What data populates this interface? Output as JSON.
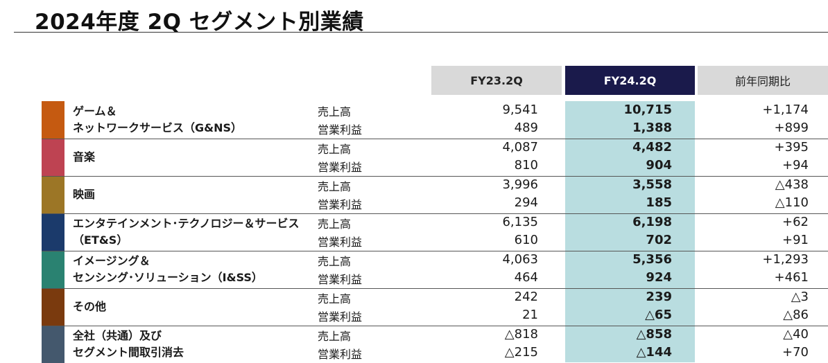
{
  "page_title": "2024年度 2Q セグメント別業績",
  "headers": {
    "fy23": "FY23.2Q",
    "fy24": "FY24.2Q",
    "yoy": "前年同期比"
  },
  "segments": [
    {
      "name": "ゲーム＆\nネットワークサービス（G&NS）",
      "color": "#c55a11",
      "rows": [
        {
          "metric": "売上高",
          "fy23": "9,541",
          "fy24": "10,715",
          "yoy": "+1,174"
        },
        {
          "metric": "営業利益",
          "fy23": "489",
          "fy24": "1,388",
          "yoy": "+899"
        }
      ]
    },
    {
      "name": "音楽",
      "color": "#be4352",
      "rows": [
        {
          "metric": "売上高",
          "fy23": "4,087",
          "fy24": "4,482",
          "yoy": "+395"
        },
        {
          "metric": "営業利益",
          "fy23": "810",
          "fy24": "904",
          "yoy": "+94"
        }
      ]
    },
    {
      "name": "映画",
      "color": "#9c7626",
      "rows": [
        {
          "metric": "売上高",
          "fy23": "3,996",
          "fy24": "3,558",
          "yoy": "△438"
        },
        {
          "metric": "営業利益",
          "fy23": "294",
          "fy24": "185",
          "yoy": "△110"
        }
      ]
    },
    {
      "name": "エンタテインメント･テクノロジー＆サービス\n（ET&S）",
      "color": "#1b3a6b",
      "rows": [
        {
          "metric": "売上高",
          "fy23": "6,135",
          "fy24": "6,198",
          "yoy": "+62"
        },
        {
          "metric": "営業利益",
          "fy23": "610",
          "fy24": "702",
          "yoy": "+91"
        }
      ]
    },
    {
      "name": "イメージング＆\nセンシング･ソリューション（I&SS）",
      "color": "#2a8271",
      "rows": [
        {
          "metric": "売上高",
          "fy23": "4,063",
          "fy24": "5,356",
          "yoy": "+1,293"
        },
        {
          "metric": "営業利益",
          "fy23": "464",
          "fy24": "924",
          "yoy": "+461"
        }
      ]
    },
    {
      "name": "その他",
      "color": "#7a3a0e",
      "rows": [
        {
          "metric": "売上高",
          "fy23": "242",
          "fy24": "239",
          "yoy": "△3"
        },
        {
          "metric": "営業利益",
          "fy23": "21",
          "fy24": "△65",
          "yoy": "△86"
        }
      ]
    },
    {
      "name": "全社（共通）及び\nセグメント間取引消去",
      "color": "#44586d",
      "rows": [
        {
          "metric": "売上高",
          "fy23": "△818",
          "fy24": "△858",
          "yoy": "△40"
        },
        {
          "metric": "営業利益",
          "fy23": "△215",
          "fy24": "△144",
          "yoy": "+70"
        }
      ]
    }
  ]
}
